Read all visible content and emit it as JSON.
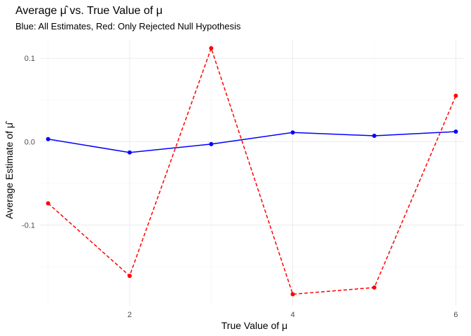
{
  "chart_data": {
    "type": "line",
    "title": "Average μ̂ vs. True Value of μ",
    "subtitle": "Blue: All Estimates, Red: Only Rejected Null Hypothesis",
    "xlabel": "True Value of μ",
    "ylabel": "Average Estimate of μ̂",
    "x_ticks": [
      2,
      4,
      6
    ],
    "y_ticks": [
      -0.1,
      0.0,
      0.1
    ],
    "y_tick_labels": [
      "-0.1",
      "0.0",
      "0.1"
    ],
    "xlim": [
      0.9,
      6.1
    ],
    "ylim": [
      -0.197,
      0.122
    ],
    "grid": true,
    "legend": "none",
    "series": [
      {
        "color": "#0000FF",
        "line_style": "solid",
        "x": [
          1,
          2,
          3,
          4,
          5,
          6
        ],
        "values": [
          0.003,
          -0.013,
          -0.003,
          0.011,
          0.007,
          0.012
        ]
      },
      {
        "color": "#FF0000",
        "line_style": "dashed",
        "x": [
          1,
          2,
          3,
          4,
          5,
          6
        ],
        "values": [
          -0.074,
          -0.161,
          0.112,
          -0.183,
          -0.175,
          0.055
        ]
      }
    ]
  }
}
